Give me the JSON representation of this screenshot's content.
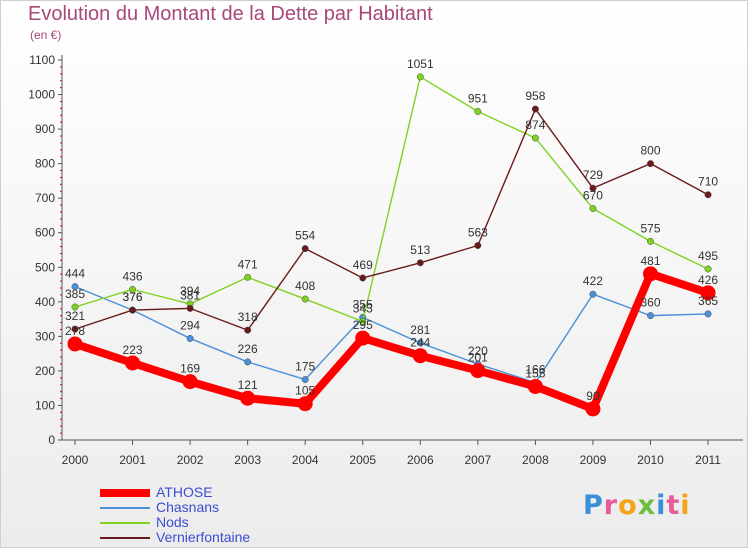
{
  "header": {
    "title": "Evolution du Montant de la Dette par Habitant",
    "subtitle": "(en €)"
  },
  "logo": {
    "text": "Proxiti"
  },
  "chart_data": {
    "type": "line",
    "title": "Evolution du Montant de la Dette par Habitant",
    "subtitle": "(en €)",
    "xlabel": "",
    "ylabel": "",
    "x": [
      "2000",
      "2001",
      "2002",
      "2003",
      "2004",
      "2005",
      "2006",
      "2007",
      "2008",
      "2009",
      "2010",
      "2011"
    ],
    "ylim": [
      0,
      1100
    ],
    "yticks": [
      0,
      100,
      200,
      300,
      400,
      500,
      600,
      700,
      800,
      900,
      1000,
      1100
    ],
    "grid": false,
    "legend_position": "bottom-left",
    "series": [
      {
        "name": "ATHOSE",
        "color": "#ff0000",
        "values": [
          278,
          223,
          169,
          121,
          105,
          295,
          244,
          201,
          155,
          90,
          481,
          426
        ]
      },
      {
        "name": "Chasnans",
        "color": "#4a90d9",
        "values": [
          444,
          376,
          294,
          226,
          175,
          355,
          281,
          220,
          166,
          422,
          360,
          365
        ]
      },
      {
        "name": "Nods",
        "color": "#7ed321",
        "values": [
          385,
          436,
          394,
          471,
          408,
          343,
          1051,
          951,
          874,
          670,
          575,
          495
        ]
      },
      {
        "name": "Vernierfontaine",
        "color": "#6b1a1a",
        "values": [
          321,
          376,
          381,
          318,
          554,
          469,
          513,
          563,
          958,
          729,
          800,
          710
        ]
      }
    ]
  }
}
